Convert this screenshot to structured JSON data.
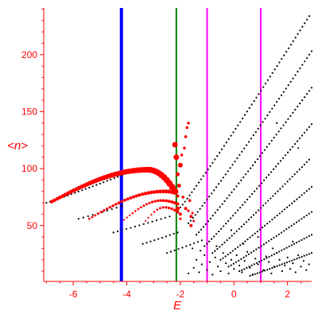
{
  "chart_data": {
    "type": "scatter",
    "title": "",
    "xlabel": "E",
    "ylabel": "<n>",
    "xlim": [
      -7.1,
      2.9
    ],
    "ylim": [
      1,
      241
    ],
    "grid": false,
    "legend": "none",
    "x_ticks": [
      -6,
      -4,
      -2,
      0,
      2
    ],
    "x_tick_labels": [
      "-6",
      "-4",
      "-2",
      "0",
      "2"
    ],
    "y_ticks": [
      50,
      100,
      150,
      200
    ],
    "y_tick_labels": [
      "50",
      "100",
      "150",
      "200"
    ],
    "colors": {
      "axis": "#ff0000",
      "black_points": "#000000",
      "red_points": "#ff0000",
      "line_blue": "#0000ff",
      "line_green": "#008000",
      "line_magenta": "#ff00ff"
    },
    "vertical_lines": [
      {
        "x": -4.2,
        "color": "#0000ff"
      },
      {
        "x": -2.15,
        "color": "#008000"
      },
      {
        "x": -1.0,
        "color": "#ff00ff"
      },
      {
        "x": 1.0,
        "color": "#ff00ff"
      }
    ],
    "black_sequences": [
      {
        "x_start": -7.0,
        "x_end": -4.2,
        "y_start": 70,
        "y_end": 94,
        "count": 22
      },
      {
        "x_start": -5.8,
        "x_end": -4.2,
        "y_start": 56,
        "y_end": 67,
        "count": 10
      },
      {
        "x_start": -4.5,
        "x_end": -2.4,
        "y_start": 44,
        "y_end": 58,
        "count": 14
      },
      {
        "x_start": -3.4,
        "x_end": -2.1,
        "y_start": 34,
        "y_end": 44,
        "count": 10
      },
      {
        "x_start": -2.5,
        "x_end": -1.2,
        "y_start": 26,
        "y_end": 37,
        "count": 10
      },
      {
        "x_start": -2.0,
        "x_end": 2.9,
        "y_start": 66,
        "y_end": 237,
        "count": 58
      },
      {
        "x_start": -1.7,
        "x_end": 2.9,
        "y_start": 52,
        "y_end": 203,
        "count": 54
      },
      {
        "x_start": -1.4,
        "x_end": 2.9,
        "y_start": 42,
        "y_end": 171,
        "count": 50
      },
      {
        "x_start": -1.1,
        "x_end": 2.9,
        "y_start": 32,
        "y_end": 139,
        "count": 46
      },
      {
        "x_start": -0.8,
        "x_end": 2.9,
        "y_start": 26,
        "y_end": 110,
        "count": 42
      },
      {
        "x_start": -0.5,
        "x_end": 2.9,
        "y_start": 20,
        "y_end": 84,
        "count": 38
      },
      {
        "x_start": -0.2,
        "x_end": 2.9,
        "y_start": 14,
        "y_end": 62,
        "count": 34
      },
      {
        "x_start": 0.2,
        "x_end": 2.9,
        "y_start": 10,
        "y_end": 42,
        "count": 30
      },
      {
        "x_start": 0.6,
        "x_end": 2.9,
        "y_start": 6,
        "y_end": 26,
        "count": 26
      }
    ],
    "black_points": [
      [
        -1.7,
        8
      ],
      [
        -1.5,
        13
      ],
      [
        -1.4,
        20
      ],
      [
        -1.3,
        9
      ],
      [
        -1.2,
        16
      ],
      [
        -1.1,
        24
      ],
      [
        -1.0,
        11
      ],
      [
        -0.9,
        18
      ],
      [
        -0.8,
        7
      ],
      [
        -0.7,
        22
      ],
      [
        -0.6,
        14
      ],
      [
        -0.5,
        10
      ],
      [
        -0.4,
        26
      ],
      [
        -0.3,
        17
      ],
      [
        -0.2,
        8
      ],
      [
        -0.1,
        20
      ],
      [
        0.0,
        12
      ],
      [
        0.1,
        24
      ],
      [
        0.2,
        15
      ],
      [
        0.3,
        9
      ],
      [
        0.4,
        19
      ],
      [
        0.5,
        27
      ],
      [
        0.6,
        13
      ],
      [
        0.7,
        7
      ],
      [
        0.8,
        21
      ],
      [
        0.9,
        16
      ],
      [
        1.1,
        11
      ],
      [
        1.2,
        23
      ],
      [
        1.3,
        18
      ],
      [
        1.4,
        8
      ],
      [
        1.5,
        14
      ],
      [
        1.6,
        26
      ],
      [
        1.7,
        20
      ],
      [
        1.8,
        10
      ],
      [
        1.9,
        15
      ],
      [
        2.0,
        22
      ],
      [
        2.1,
        12
      ],
      [
        2.2,
        17
      ],
      [
        2.3,
        9
      ],
      [
        2.4,
        24
      ],
      [
        2.5,
        14
      ],
      [
        2.6,
        19
      ],
      [
        2.7,
        11
      ],
      [
        2.8,
        16
      ],
      [
        -1.55,
        30
      ],
      [
        -1.25,
        28
      ],
      [
        -0.65,
        32
      ],
      [
        0.35,
        34
      ],
      [
        1.45,
        30
      ],
      [
        2.2,
        36
      ],
      [
        1.6,
        140
      ],
      [
        2.4,
        118
      ],
      [
        -0.1,
        46
      ],
      [
        0.9,
        40
      ]
    ],
    "red_sequences": [
      {
        "x_start": -6.8,
        "x_end": -2.2,
        "y_peak": 99,
        "x_peak": -3.2,
        "y_start": 71,
        "y_end": 80,
        "count": 46,
        "size": 3.2
      },
      {
        "x_start": -5.4,
        "x_end": -2.2,
        "y_peak": 80,
        "x_peak": -2.6,
        "y_start": 56,
        "y_end": 79,
        "count": 30,
        "size": 2.0
      },
      {
        "x_start": -4.1,
        "x_end": -2.1,
        "y_peak": 72,
        "x_peak": -2.7,
        "y_start": 55,
        "y_end": 69,
        "count": 20,
        "size": 1.6
      },
      {
        "x_start": -3.3,
        "x_end": -2.1,
        "y_peak": 66,
        "x_peak": -2.6,
        "y_start": 54,
        "y_end": 62,
        "count": 12,
        "size": 1.5
      }
    ],
    "red_points": [
      [
        -2.2,
        121,
        3.5
      ],
      [
        -2.15,
        110,
        3.5
      ],
      [
        -2.0,
        103,
        3.0
      ],
      [
        -1.8,
        128,
        1.8
      ],
      [
        -1.75,
        136,
        1.8
      ],
      [
        -1.7,
        140,
        1.8
      ],
      [
        -1.85,
        118,
        1.8
      ],
      [
        -1.95,
        112,
        1.8
      ],
      [
        -2.05,
        85,
        2.5
      ],
      [
        -2.1,
        95,
        2.5
      ],
      [
        -2.1,
        65,
        2.5
      ],
      [
        -2.0,
        60,
        2.0
      ],
      [
        -1.8,
        65,
        2.0
      ],
      [
        -1.6,
        58,
        2.0
      ],
      [
        -1.6,
        50,
        2.0
      ],
      [
        -1.65,
        72,
        1.8
      ],
      [
        -1.9,
        75,
        1.8
      ],
      [
        -1.5,
        54,
        1.5
      ],
      [
        -2.2,
        70,
        2.0
      ],
      [
        -2.1,
        76,
        2.0
      ],
      [
        -2.0,
        56,
        1.6
      ],
      [
        -1.7,
        63,
        1.6
      ],
      [
        -1.55,
        61,
        1.5
      ]
    ]
  }
}
